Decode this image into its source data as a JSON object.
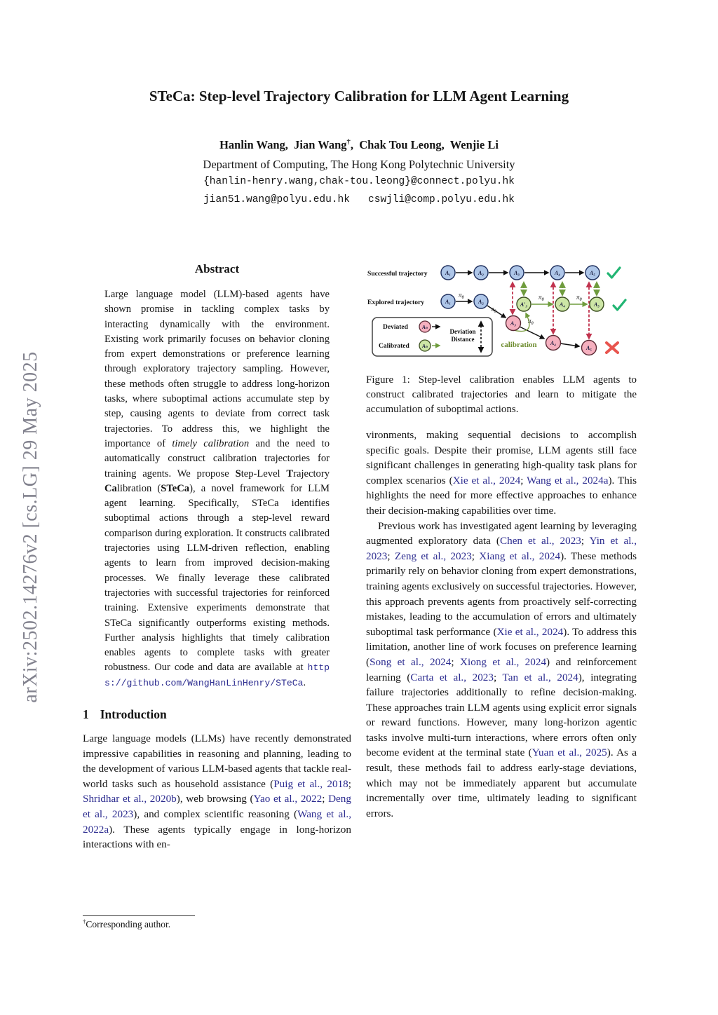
{
  "arxiv_banner": "arXiv:2502.14276v2  [cs.LG]  29 May 2025",
  "header": {
    "title": "STeCa: Step-level Trajectory Calibration for LLM Agent Learning",
    "authors_segments": [
      {
        "t": "Hanlin Wang,  Jian Wang"
      },
      {
        "t": "†",
        "s": "sup"
      },
      {
        "t": ",  Chak Tou Leong,  Wenjie Li"
      }
    ],
    "affiliation": "Department of Computing, The Hong Kong Polytechnic University",
    "email_line1": "{hanlin-henry.wang,chak-tou.leong}@connect.polyu.hk",
    "email_line2": "jian51.wang@polyu.edu.hk   cswjli@comp.polyu.edu.hk"
  },
  "abstract": {
    "heading": "Abstract",
    "segments": [
      {
        "t": "Large language model (LLM)-based agents have shown promise in tackling complex tasks by interacting dynamically with the environment. Existing work primarily focuses on behavior cloning from expert demonstrations or preference learning through exploratory trajectory sampling. However, these methods often struggle to address long-horizon tasks, where suboptimal actions accumulate step by step, causing agents to deviate from correct task trajectories. To address this, we highlight the importance of "
      },
      {
        "t": "timely calibration",
        "s": "italic"
      },
      {
        "t": " and the need to automatically construct calibration trajectories for training agents. We propose "
      },
      {
        "t": "S",
        "s": "bold"
      },
      {
        "t": "tep-Level "
      },
      {
        "t": "T",
        "s": "bold"
      },
      {
        "t": "rajectory "
      },
      {
        "t": "Ca",
        "s": "bold"
      },
      {
        "t": "libration ("
      },
      {
        "t": "STeCa",
        "s": "bold"
      },
      {
        "t": "), a novel framework for LLM agent learning. Specifically, STeCa identifies suboptimal actions through a step-level reward comparison during exploration. It constructs calibrated trajectories using LLM-driven reflection, enabling agents to learn from improved decision-making processes. We finally leverage these calibrated trajectories with successful trajectories for reinforced training. Extensive experiments demonstrate that STeCa significantly outperforms existing methods. Further analysis highlights that timely calibration enables agents to complete tasks with greater robustness. Our code and data are available at "
      },
      {
        "t": "https://github.com/WangHanLinHenry/STeCa",
        "s": "link"
      },
      {
        "t": "."
      }
    ]
  },
  "figure": {
    "row1_label": "Successful trajectory",
    "row2_label": "Explored trajectory",
    "calibration_label": "calibration",
    "pi": "π",
    "theta": "θ",
    "nodes": {
      "a1": "A₁",
      "a2": "A₂",
      "a3": "A₃",
      "a4": "A₄",
      "a5": "A₅",
      "a3c": "A′₃",
      "an": "Aₙ"
    },
    "legend": {
      "deviated": "Deviated",
      "calibrated": "Calibrated",
      "deviation_line1": "Deviation",
      "deviation_line2": "Distance"
    },
    "colors": {
      "node_blue": "#aec6e8",
      "node_pink": "#f5b0bf",
      "node_green": "#cde6a6",
      "arrow_green": "#6f9c3d",
      "dashed_red": "#c1334e",
      "check_green": "#22b573",
      "cross_red": "#e8544e",
      "calibration_olive": "#6d8c2e"
    }
  },
  "figure_caption": "Figure 1: Step-level calibration enables LLM agents to construct calibrated trajectories and learn to mitigate the accumulation of suboptimal actions.",
  "sections": {
    "intro_number": "1",
    "intro_title": "Introduction"
  },
  "left_intro": {
    "segments": [
      {
        "t": "Large language models (LLMs) have recently demonstrated impressive capabilities in reasoning and planning, leading to the development of various LLM-based agents that tackle real-world tasks such as household assistance ("
      },
      {
        "t": "Puig et al., 2018",
        "s": "cite"
      },
      {
        "t": "; "
      },
      {
        "t": "Shridhar et al., 2020b",
        "s": "cite"
      },
      {
        "t": "), web browsing ("
      },
      {
        "t": "Yao et al., 2022",
        "s": "cite"
      },
      {
        "t": "; "
      },
      {
        "t": "Deng et al., 2023",
        "s": "cite"
      },
      {
        "t": "), and complex scientific reasoning ("
      },
      {
        "t": "Wang et al., 2022a",
        "s": "cite"
      },
      {
        "t": "). These agents typically engage in long-horizon interactions with en-"
      }
    ]
  },
  "right_col": {
    "para1_segments": [
      {
        "t": "vironments, making sequential decisions to accomplish specific goals. Despite their promise, LLM agents still face significant challenges in generating high-quality task plans for complex scenarios ("
      },
      {
        "t": "Xie et al., 2024",
        "s": "cite"
      },
      {
        "t": "; "
      },
      {
        "t": "Wang et al., 2024a",
        "s": "cite"
      },
      {
        "t": "). This highlights the need for more effective approaches to enhance their decision-making capabilities over time."
      }
    ],
    "para2_segments": [
      {
        "t": "Previous work has investigated agent learning by leveraging augmented exploratory data ("
      },
      {
        "t": "Chen et al., 2023",
        "s": "cite"
      },
      {
        "t": "; "
      },
      {
        "t": "Yin et al., 2023",
        "s": "cite"
      },
      {
        "t": "; "
      },
      {
        "t": "Zeng et al., 2023",
        "s": "cite"
      },
      {
        "t": "; "
      },
      {
        "t": "Xiang et al., 2024",
        "s": "cite"
      },
      {
        "t": "). These methods primarily rely on behavior cloning from expert demonstrations, training agents exclusively on successful trajectories. However, this approach prevents agents from proactively self-correcting mistakes, leading to the accumulation of errors and ultimately suboptimal task performance ("
      },
      {
        "t": "Xie et al., 2024",
        "s": "cite"
      },
      {
        "t": "). To address this limitation, another line of work focuses on preference learning ("
      },
      {
        "t": "Song et al., 2024",
        "s": "cite"
      },
      {
        "t": "; "
      },
      {
        "t": "Xiong et al., 2024",
        "s": "cite"
      },
      {
        "t": ") and reinforcement learning ("
      },
      {
        "t": "Carta et al., 2023",
        "s": "cite"
      },
      {
        "t": "; "
      },
      {
        "t": "Tan et al., 2024",
        "s": "cite"
      },
      {
        "t": "), integrating failure trajectories additionally to refine decision-making. These approaches train LLM agents using explicit error signals or reward functions. However, many long-horizon agentic tasks involve multi-turn interactions, where errors often only become evident at the terminal state ("
      },
      {
        "t": "Yuan et al., 2025",
        "s": "cite"
      },
      {
        "t": "). As a result, these methods fail to address early-stage deviations, which may not be immediately apparent but accumulate incrementally over time, ultimately leading to significant errors."
      }
    ]
  },
  "footnote": {
    "segments": [
      {
        "t": "†",
        "s": "sup"
      },
      {
        "t": "Corresponding author."
      }
    ]
  }
}
